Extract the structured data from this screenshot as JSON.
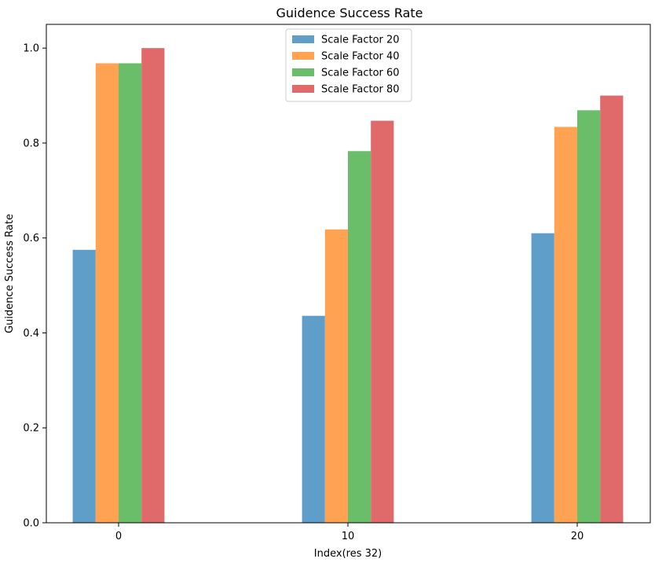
{
  "chart_data": {
    "type": "bar",
    "title": "Guidence Success Rate",
    "xlabel": "Index(res 32)",
    "ylabel": "Guidence Success Rate",
    "categories": [
      "0",
      "10",
      "20"
    ],
    "ylim": [
      0,
      1.05
    ],
    "yticks": [
      "0.0",
      "0.2",
      "0.4",
      "0.6",
      "0.8",
      "1.0"
    ],
    "grid": false,
    "legend_position": "top-center",
    "series": [
      {
        "name": "Scale Factor 20",
        "color": "#5f9ec9",
        "values": [
          0.575,
          0.436,
          0.61
        ]
      },
      {
        "name": "Scale Factor 40",
        "color": "#ffa352",
        "values": [
          0.968,
          0.618,
          0.834
        ]
      },
      {
        "name": "Scale Factor 60",
        "color": "#6abe6a",
        "values": [
          0.968,
          0.783,
          0.869
        ]
      },
      {
        "name": "Scale Factor 80",
        "color": "#e06969",
        "values": [
          1.0,
          0.847,
          0.9
        ]
      }
    ]
  }
}
